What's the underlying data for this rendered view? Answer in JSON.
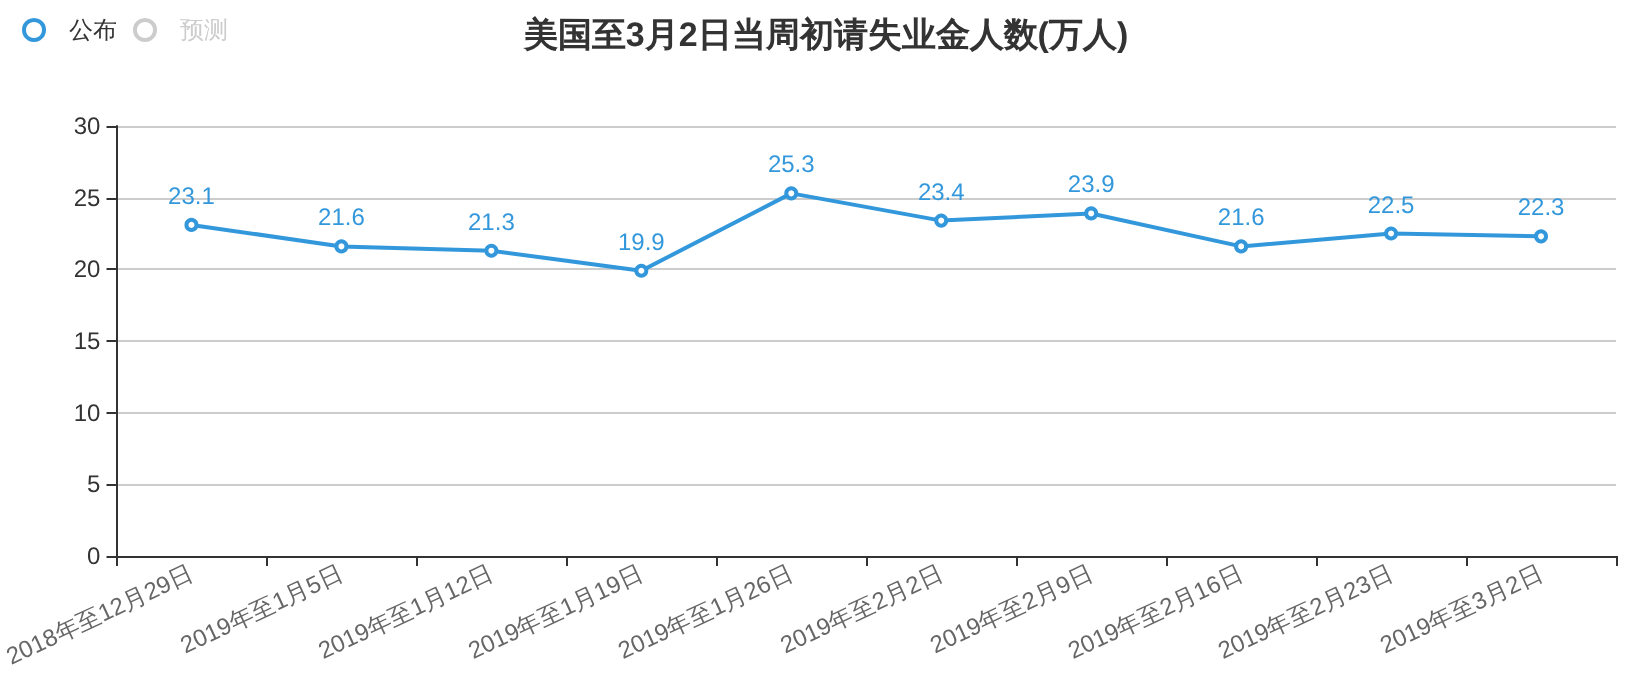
{
  "chart_data": {
    "type": "line",
    "title": "美国至3月2日当周初请失业金人数(万人)",
    "categories": [
      "2018年至12月29日",
      "2019年至1月5日",
      "2019年至1月12日",
      "2019年至1月19日",
      "2019年至1月26日",
      "2019年至2月2日",
      "2019年至2月9日",
      "2019年至2月16日",
      "2019年至2月23日",
      "2019年至3月2日"
    ],
    "series": [
      {
        "name": "公布",
        "color": "#3398db",
        "values": [
          23.1,
          21.6,
          21.3,
          19.9,
          25.3,
          23.4,
          23.9,
          21.6,
          22.5,
          22.3
        ]
      },
      {
        "name": "预测",
        "color": "#cccccc",
        "values": [
          null,
          null,
          null,
          null,
          null,
          null,
          null,
          null,
          null,
          null
        ]
      }
    ],
    "ylim": [
      0,
      30
    ],
    "yticks": [
      0,
      5,
      10,
      15,
      20,
      25,
      30
    ],
    "grid": "y",
    "legend": "top left",
    "marker": "circle",
    "line_style": "solid",
    "data_labels": true
  }
}
